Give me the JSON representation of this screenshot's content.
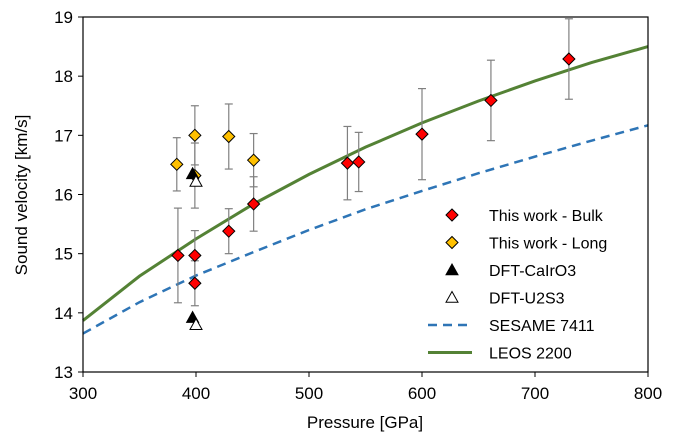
{
  "chart_data": {
    "type": "scatter",
    "xlabel": "Pressure [GPa]",
    "ylabel": "Sound velocity [km/s]",
    "xlim": [
      300,
      800
    ],
    "ylim": [
      13,
      19
    ],
    "x_ticks": [
      "300",
      "400",
      "500",
      "600",
      "700",
      "800"
    ],
    "y_ticks": [
      "13",
      "14",
      "15",
      "16",
      "17",
      "18",
      "19"
    ],
    "grid": false,
    "legend_position": "lower-right",
    "series": [
      {
        "name": "This work - Bulk",
        "marker": "diamond",
        "color": "#ff0000",
        "points": [
          {
            "x": 384,
            "y": 14.97,
            "err": 0.8
          },
          {
            "x": 399,
            "y": 14.97,
            "err": 0.42
          },
          {
            "x": 399,
            "y": 14.5,
            "err": 0.38
          },
          {
            "x": 429,
            "y": 15.38,
            "err": 0.38
          },
          {
            "x": 451,
            "y": 15.84,
            "err": 0.46
          },
          {
            "x": 534,
            "y": 16.53,
            "err": 0.62
          },
          {
            "x": 544,
            "y": 16.55,
            "err": 0.5
          },
          {
            "x": 600,
            "y": 17.02,
            "err": 0.77
          },
          {
            "x": 661,
            "y": 17.59,
            "err": 0.68
          },
          {
            "x": 730,
            "y": 18.29,
            "err": 0.68
          }
        ]
      },
      {
        "name": "This work - Long",
        "marker": "diamond",
        "color": "#ffc000",
        "points": [
          {
            "x": 383,
            "y": 16.51,
            "err": 0.45
          },
          {
            "x": 399,
            "y": 17.0,
            "err": 0.5
          },
          {
            "x": 399,
            "y": 16.32,
            "err": 0.55
          },
          {
            "x": 429,
            "y": 16.98,
            "err": 0.55
          },
          {
            "x": 451,
            "y": 16.58,
            "err": 0.45
          }
        ]
      },
      {
        "name": "DFT-CaIrO3",
        "marker": "triangle-filled",
        "color": "#000000",
        "points": [
          {
            "x": 397,
            "y": 16.35
          },
          {
            "x": 397,
            "y": 13.92
          }
        ]
      },
      {
        "name": "DFT-U2S3",
        "marker": "triangle-open",
        "color": "#000000",
        "points": [
          {
            "x": 400,
            "y": 16.22
          },
          {
            "x": 400,
            "y": 13.8
          }
        ]
      }
    ],
    "curves": [
      {
        "name": "SESAME 7411",
        "style": "dashed",
        "color": "#2e75b6",
        "x": [
          300,
          350,
          400,
          450,
          500,
          550,
          600,
          650,
          700,
          750,
          800
        ],
        "y": [
          13.65,
          14.18,
          14.63,
          15.02,
          15.4,
          15.75,
          16.06,
          16.36,
          16.64,
          16.91,
          17.17
        ]
      },
      {
        "name": "LEOS 2200",
        "style": "solid",
        "color": "#548235",
        "x": [
          300,
          350,
          400,
          450,
          500,
          550,
          600,
          650,
          700,
          750,
          800
        ],
        "y": [
          13.87,
          14.62,
          15.25,
          15.83,
          16.34,
          16.8,
          17.21,
          17.58,
          17.92,
          18.23,
          18.5
        ]
      }
    ],
    "legend": [
      {
        "label": "This work - Bulk",
        "marker": "diamond",
        "color": "#ff0000"
      },
      {
        "label": "This work - Long",
        "marker": "diamond",
        "color": "#ffc000"
      },
      {
        "label": "DFT-CaIrO3",
        "marker": "triangle-filled",
        "color": "#000000"
      },
      {
        "label": "DFT-U2S3",
        "marker": "triangle-open",
        "color": "#000000"
      },
      {
        "label": "SESAME 7411",
        "marker": "dash-line",
        "color": "#2e75b6"
      },
      {
        "label": "LEOS 2200",
        "marker": "solid-line",
        "color": "#548235"
      }
    ]
  }
}
